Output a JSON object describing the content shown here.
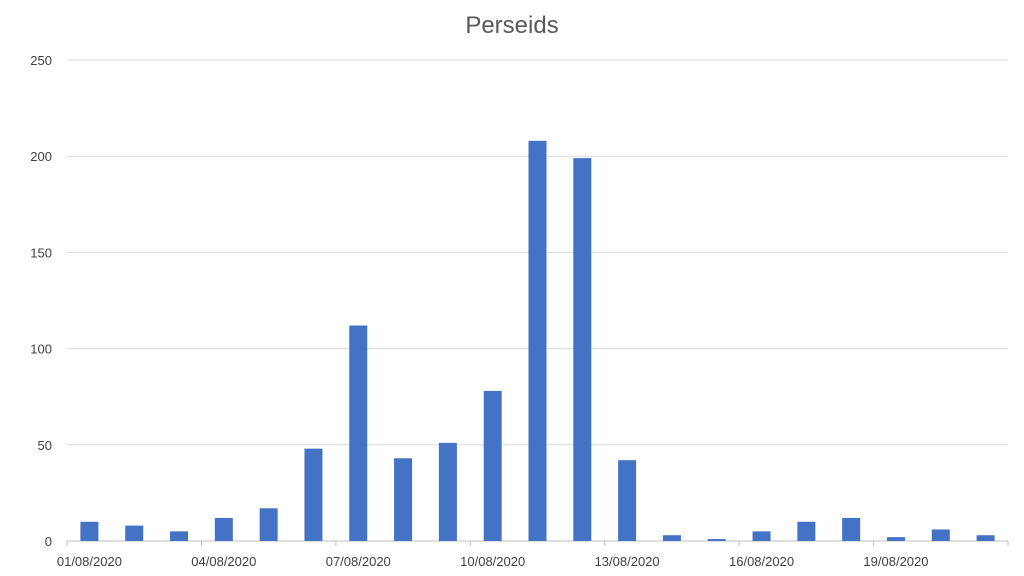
{
  "chart_data": {
    "type": "bar",
    "title": "Perseids",
    "xlabel": "",
    "ylabel": "",
    "categories": [
      "01/08/2020",
      "02/08/2020",
      "03/08/2020",
      "04/08/2020",
      "05/08/2020",
      "06/08/2020",
      "07/08/2020",
      "08/08/2020",
      "09/08/2020",
      "10/08/2020",
      "11/08/2020",
      "12/08/2020",
      "13/08/2020",
      "14/08/2020",
      "15/08/2020",
      "16/08/2020",
      "17/08/2020",
      "18/08/2020",
      "19/08/2020",
      "20/08/2020",
      "21/08/2020"
    ],
    "x_tick_labels": [
      "01/08/2020",
      "04/08/2020",
      "07/08/2020",
      "10/08/2020",
      "13/08/2020",
      "16/08/2020",
      "19/08/2020"
    ],
    "values": [
      10,
      8,
      5,
      12,
      17,
      48,
      112,
      43,
      51,
      78,
      208,
      199,
      42,
      3,
      1,
      5,
      10,
      12,
      2,
      6,
      3
    ],
    "ylim": [
      0,
      250
    ],
    "y_ticks": [
      0,
      50,
      100,
      150,
      200,
      250
    ],
    "grid": true,
    "legend": "none",
    "bar_color": "#4472C4",
    "grid_color": "#D9D9D9",
    "axis_color": "#BFBFBF"
  }
}
